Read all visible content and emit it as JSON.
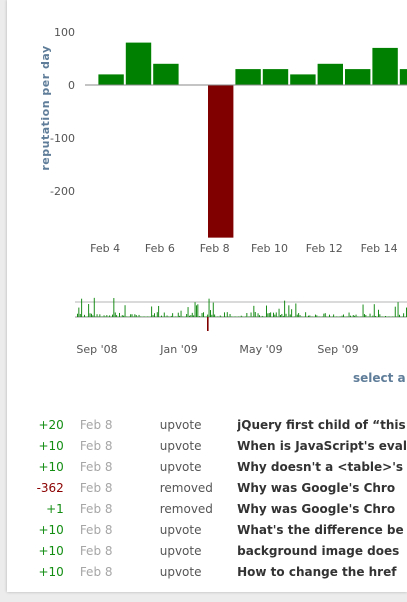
{
  "chart_data": [
    {
      "type": "bar",
      "ylabel": "reputation per day",
      "ylim": [
        -290,
        110
      ],
      "yticks": [
        100,
        0,
        -100,
        -200
      ],
      "x_tick_labels": [
        "Feb 4",
        "Feb 6",
        "Feb 8",
        "Feb 10",
        "Feb 12",
        "Feb 14",
        "F"
      ],
      "categories": [
        "Feb 3",
        "Feb 4",
        "Feb 5",
        "Feb 6",
        "Feb 7",
        "Feb 8",
        "Feb 9",
        "Feb 10",
        "Feb 11",
        "Feb 12",
        "Feb 13",
        "Feb 14",
        "Feb 15",
        "Feb 16"
      ],
      "values": [
        0,
        20,
        80,
        40,
        0,
        -288,
        30,
        30,
        20,
        40,
        30,
        70,
        30,
        0
      ],
      "colors": {
        "positive": "#008000",
        "negative": "#800000"
      }
    },
    {
      "type": "bar",
      "x_tick_labels": [
        "Sep '08",
        "Jan '09",
        "May '09",
        "Sep '09"
      ],
      "colors": {
        "positive": "#008000",
        "negative": "#800000"
      }
    }
  ],
  "select_link": "select a",
  "reputation_list": [
    {
      "amount": "+20",
      "date": "Feb 8",
      "type": "upvote",
      "title": "jQuery first child of “this"
    },
    {
      "amount": "+10",
      "date": "Feb 8",
      "type": "upvote",
      "title": "When is JavaScript's eval"
    },
    {
      "amount": "+10",
      "date": "Feb 8",
      "type": "upvote",
      "title": "Why doesn't a <table>'s"
    },
    {
      "amount": "-362",
      "date": "Feb 8",
      "type": "removed",
      "title": "Why was Google's Chro"
    },
    {
      "amount": "+1",
      "date": "Feb 8",
      "type": "removed",
      "title": "Why was Google's Chro"
    },
    {
      "amount": "+10",
      "date": "Feb 8",
      "type": "upvote",
      "title": "What's the difference be"
    },
    {
      "amount": "+10",
      "date": "Feb 8",
      "type": "upvote",
      "title": "background image does"
    },
    {
      "amount": "+10",
      "date": "Feb 8",
      "type": "upvote",
      "title": "How to change the href"
    }
  ]
}
